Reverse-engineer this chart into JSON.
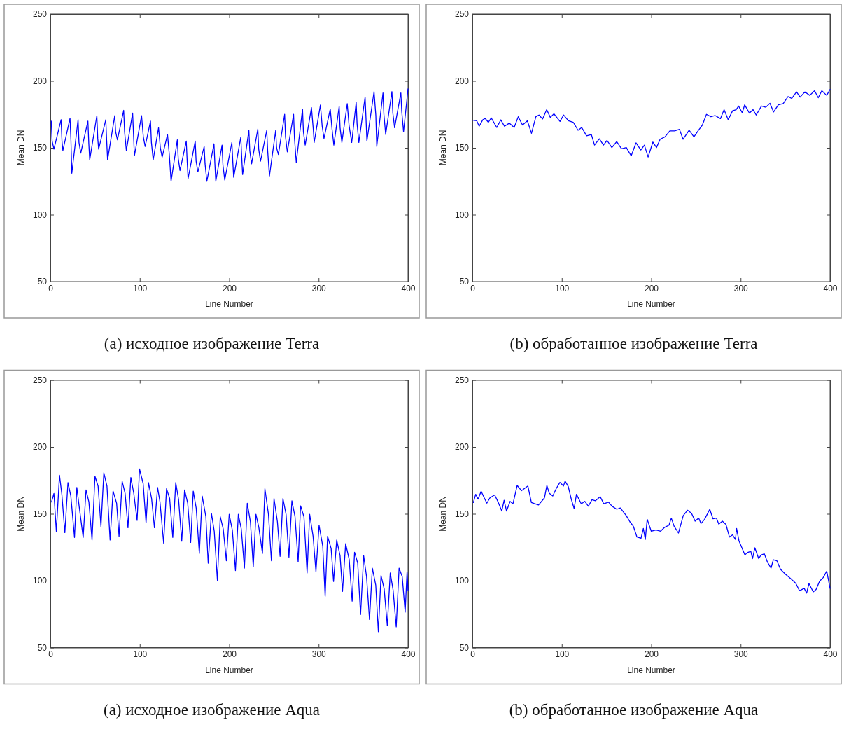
{
  "chart_data": [
    {
      "type": "line",
      "xlabel": "Line Number",
      "ylabel": "Mean DN",
      "color": "#0000ff",
      "xlim": [
        0,
        400
      ],
      "ylim": [
        50,
        250
      ],
      "xticks": [
        0,
        100,
        200,
        300,
        400
      ],
      "yticks": [
        50,
        100,
        150,
        200,
        250
      ],
      "annotations": [
        "(a) исходное изображение Terra"
      ],
      "x": [
        1,
        2,
        4,
        12,
        13,
        14,
        22,
        23,
        24,
        31,
        32,
        34,
        42,
        43,
        44,
        52,
        53,
        54,
        62,
        63,
        64,
        72,
        73,
        75,
        82,
        83,
        85,
        92,
        93,
        94,
        102,
        104,
        106,
        112,
        113,
        115,
        121,
        123,
        125,
        131,
        133,
        135,
        142,
        143,
        145,
        152,
        153,
        154,
        162,
        163,
        165,
        172,
        173,
        175,
        183,
        184,
        185,
        192,
        193,
        195,
        203,
        204,
        205,
        213,
        214,
        215,
        222,
        223,
        225,
        232,
        233,
        235,
        242,
        243,
        245,
        252,
        253,
        255,
        262,
        263,
        265,
        272,
        273,
        275,
        282,
        283,
        285,
        292,
        294,
        295,
        302,
        304,
        306,
        313,
        315,
        317,
        323,
        324,
        326,
        332,
        334,
        337,
        342,
        343,
        345,
        352,
        353,
        354,
        362,
        364,
        365,
        372,
        373,
        375,
        382,
        383,
        385,
        392,
        393,
        395,
        400
      ],
      "values": [
        170,
        155,
        149,
        171,
        155,
        148,
        172,
        156,
        131,
        171,
        154,
        146,
        170,
        153,
        141,
        174,
        157,
        149,
        171,
        155,
        141,
        174,
        162,
        156,
        178,
        162,
        148,
        176,
        160,
        144,
        174,
        158,
        151,
        170,
        154,
        141,
        165,
        150,
        143,
        160,
        145,
        125,
        156,
        142,
        133,
        155,
        140,
        127,
        155,
        140,
        132,
        151,
        138,
        125,
        153,
        138,
        125,
        152,
        137,
        126,
        154,
        140,
        128,
        158,
        143,
        130,
        163,
        148,
        138,
        164,
        149,
        140,
        163,
        148,
        129,
        163,
        150,
        145,
        175,
        158,
        147,
        175,
        157,
        139,
        179,
        162,
        152,
        180,
        164,
        154,
        182,
        166,
        157,
        179,
        164,
        152,
        181,
        165,
        154,
        183,
        167,
        154,
        184,
        168,
        154,
        188,
        172,
        155,
        192,
        174,
        151,
        191,
        175,
        160,
        192,
        176,
        165,
        191,
        177,
        162,
        194
      ]
    },
    {
      "type": "line",
      "xlabel": "Line Number",
      "ylabel": "Mean DN",
      "color": "#0000ff",
      "xlim": [
        0,
        400
      ],
      "ylim": [
        50,
        250
      ],
      "xticks": [
        0,
        100,
        200,
        300,
        400
      ],
      "yticks": [
        50,
        100,
        150,
        200,
        250
      ],
      "annotations": [
        "(b) обработанное изображение Terra"
      ],
      "x": [
        0.8,
        4.9,
        7.6,
        11.6,
        14.3,
        17.8,
        21.1,
        27.3,
        31.8,
        35.9,
        41.3,
        46.7,
        51.3,
        56.1,
        61.5,
        66.1,
        71,
        74.5,
        78.5,
        83.1,
        87.2,
        91.2,
        98,
        102,
        107.4,
        112.8,
        118.2,
        122.3,
        127.7,
        133.1,
        136.6,
        142,
        146.6,
        150.6,
        156,
        161.4,
        166.8,
        172.2,
        177.6,
        183,
        188.4,
        192.4,
        196.5,
        201.9,
        205.9,
        210,
        215.4,
        220.8,
        226.2,
        231.6,
        235.6,
        242.4,
        247.8,
        251.8,
        257.2,
        261.8,
        266.7,
        271.5,
        277.5,
        281.5,
        286.1,
        291,
        295,
        297.7,
        301.8,
        304.5,
        309.8,
        313.9,
        317.4,
        323.3,
        328.2,
        332.8,
        336.8,
        342.2,
        347.6,
        353,
        357.1,
        362.5,
        366.5,
        371.9,
        377.3,
        382.7,
        386.8,
        390.8,
        396.2,
        400
      ],
      "values": [
        170.6,
        170.2,
        166.1,
        170.9,
        172,
        169.1,
        172.3,
        165.2,
        170.9,
        166.1,
        168.4,
        165.2,
        173.2,
        167,
        170.2,
        160.8,
        173.2,
        174.5,
        171.5,
        178.5,
        172.7,
        175.4,
        169.7,
        174.5,
        170.2,
        169.1,
        163.1,
        165.2,
        159,
        159.9,
        152,
        156.7,
        152,
        155.5,
        150.2,
        154.6,
        149.3,
        150.2,
        144,
        153.7,
        148.4,
        152,
        143.1,
        154.3,
        150.2,
        156.4,
        158.2,
        162.6,
        162.6,
        163.8,
        156.4,
        163.1,
        158.2,
        162.1,
        167,
        175,
        173.2,
        174.1,
        171.8,
        178.5,
        170.9,
        177.7,
        178.5,
        181.2,
        176.2,
        182.1,
        175.9,
        178.5,
        174.5,
        181.2,
        180.3,
        183.3,
        176.8,
        182.1,
        183,
        188.3,
        186.9,
        191.8,
        187.9,
        191.8,
        189.2,
        192.7,
        187.4,
        192.7,
        189.2,
        193.6
      ]
    },
    {
      "type": "line",
      "xlabel": "Line Number",
      "ylabel": "Mean DN",
      "color": "#0000ff",
      "xlim": [
        0,
        400
      ],
      "ylim": [
        50,
        250
      ],
      "xticks": [
        0,
        100,
        200,
        300,
        400
      ],
      "yticks": [
        50,
        100,
        150,
        200,
        250
      ],
      "annotations": [
        "(a) исходное изображение Aqua"
      ],
      "x": [
        1.3,
        4,
        6.7,
        10.2,
        12.9,
        16.2,
        19.7,
        22.9,
        27,
        29.6,
        32.3,
        36.7,
        39.9,
        43.1,
        46.6,
        49.9,
        53.4,
        56.6,
        59.8,
        63.3,
        66.8,
        70.1,
        74.1,
        76.8,
        80.3,
        83.6,
        86.8,
        90,
        93.3,
        97,
        99.7,
        103.8,
        107,
        109.7,
        113.2,
        116.4,
        119.9,
        122.6,
        126.7,
        129.9,
        133.4,
        136.9,
        140.2,
        143.4,
        146.9,
        150.1,
        153.6,
        156.9,
        159.8,
        163.1,
        166.6,
        169.8,
        173.9,
        176.5,
        180.1,
        183.3,
        186.8,
        190,
        193.3,
        196.8,
        200,
        203.5,
        207,
        210.2,
        213.5,
        217,
        220.2,
        223.7,
        226.9,
        229.9,
        233.2,
        237.2,
        239.9,
        243.9,
        247.2,
        250.1,
        253.9,
        256.9,
        260.1,
        263.6,
        266.8,
        270.1,
        273.6,
        277.1,
        279.8,
        283.6,
        287.1,
        290,
        293.8,
        297,
        300.5,
        304.6,
        307.3,
        310,
        314,
        316.7,
        320.2,
        324,
        326.7,
        330.2,
        334.2,
        337.5,
        340.2,
        343.7,
        346.9,
        350.4,
        353.6,
        356.9,
        360.1,
        363.9,
        366.8,
        369.8,
        373.3,
        376.8,
        380.1,
        383.3,
        386.8,
        390,
        393.5,
        396.8,
        398.9,
        400
      ],
      "values": [
        158.8,
        165.2,
        136.8,
        178.9,
        164.3,
        135.9,
        173.4,
        163.3,
        132.3,
        169.7,
        155.1,
        132.3,
        167.9,
        158.8,
        130.4,
        178,
        170.7,
        140.5,
        180.7,
        170.7,
        130.4,
        167,
        157.9,
        133.2,
        174.3,
        165.2,
        139.6,
        177.1,
        165.2,
        145.1,
        183.5,
        172.5,
        143.2,
        173.4,
        161.5,
        139.6,
        169.7,
        158.8,
        128.1,
        168.8,
        161.5,
        132.3,
        173.4,
        160.6,
        129.5,
        167.9,
        157.9,
        128.6,
        167,
        154.2,
        120.4,
        163.3,
        147.8,
        113.1,
        150.5,
        136.8,
        100.3,
        147.8,
        138.7,
        114.9,
        149.6,
        137.8,
        107.6,
        149.6,
        138.7,
        109.4,
        157.9,
        144.1,
        110.3,
        149.6,
        139.6,
        120.4,
        168.8,
        149.6,
        114.9,
        161.5,
        144.1,
        118.2,
        161.5,
        149.6,
        117.6,
        159.7,
        147.8,
        114,
        156,
        147.8,
        105.8,
        149.6,
        133.2,
        106.7,
        141.4,
        125.9,
        88.4,
        133.2,
        124,
        99.4,
        130.4,
        118.6,
        92,
        127.7,
        115.8,
        84.7,
        121.3,
        113.1,
        74.7,
        118.6,
        103,
        71,
        109.4,
        96.6,
        61.9,
        103.9,
        93.9,
        66.5,
        105.8,
        93,
        65.5,
        109.4,
        103,
        76.5,
        106.7,
        93
      ]
    },
    {
      "type": "line",
      "xlabel": "Line Number",
      "ylabel": "Mean DN",
      "color": "#0000ff",
      "xlim": [
        0,
        400
      ],
      "ylim": [
        50,
        250
      ],
      "xticks": [
        0,
        100,
        200,
        300,
        400
      ],
      "yticks": [
        50,
        100,
        150,
        200,
        250
      ],
      "annotations": [
        "(b) обработанное изображение Aqua"
      ],
      "x": [
        1.1,
        3.7,
        6.4,
        9.8,
        13,
        16.2,
        19.6,
        24.9,
        28.9,
        32.9,
        35.5,
        38.2,
        42.2,
        45.4,
        50.1,
        54.9,
        62.1,
        66,
        70,
        74,
        80.6,
        83.3,
        85.9,
        89.9,
        93.9,
        97.9,
        101.9,
        103.7,
        107.2,
        110.6,
        113.8,
        116.4,
        121.8,
        125.7,
        129.7,
        133.7,
        137.7,
        143,
        146.9,
        152.3,
        156.2,
        161.5,
        165.5,
        172.1,
        176.1,
        180.1,
        184.1,
        188.6,
        191.2,
        193.4,
        195.5,
        200,
        205.3,
        210.6,
        214.6,
        219.9,
        222.5,
        225.7,
        230.5,
        235.8,
        240.6,
        245.1,
        249.1,
        253.1,
        255.7,
        259.7,
        265.5,
        269,
        272.9,
        275.6,
        279.6,
        283.6,
        287.5,
        291,
        294.2,
        295.5,
        298.1,
        304.8,
        307.4,
        311.4,
        313.3,
        315.9,
        320.2,
        322.8,
        326.5,
        330,
        334,
        336.6,
        340.6,
        344.6,
        349.9,
        354.6,
        359.2,
        361.8,
        365.8,
        371.1,
        373.8,
        376.4,
        381.2,
        384.4,
        388.3,
        392.3,
        396.3,
        400
      ],
      "values": [
        158.4,
        164.6,
        161,
        166.9,
        162.3,
        158,
        161.9,
        164.1,
        158.7,
        152.1,
        160.1,
        152.1,
        159.3,
        157.5,
        171.2,
        167.3,
        170.8,
        158.4,
        157.5,
        156.6,
        161.9,
        171.2,
        165.5,
        163.3,
        169,
        173.5,
        170.8,
        174.4,
        170.5,
        161,
        153.9,
        164.6,
        157.5,
        159.3,
        155.7,
        160.5,
        159.8,
        162.8,
        157.5,
        158.7,
        155.7,
        153.4,
        154.4,
        148.6,
        144.1,
        140.6,
        132.6,
        131.7,
        139.1,
        130.8,
        145.9,
        137,
        137.9,
        137,
        139.7,
        141.5,
        146.8,
        140.6,
        135.6,
        148.6,
        152.7,
        150.4,
        144.5,
        146.8,
        142.7,
        145.9,
        153.4,
        146.3,
        146.8,
        142.3,
        144.5,
        142,
        132.6,
        134.3,
        130.8,
        139.1,
        129.9,
        119.2,
        121,
        121.9,
        116.5,
        124.6,
        116.5,
        119.2,
        120.1,
        113.9,
        109.4,
        115.7,
        114.8,
        108.5,
        105,
        102.3,
        99.6,
        97.9,
        92.5,
        94.3,
        90.7,
        97.9,
        91.6,
        93.4,
        99.6,
        102.3,
        107.1,
        94.3
      ]
    }
  ]
}
